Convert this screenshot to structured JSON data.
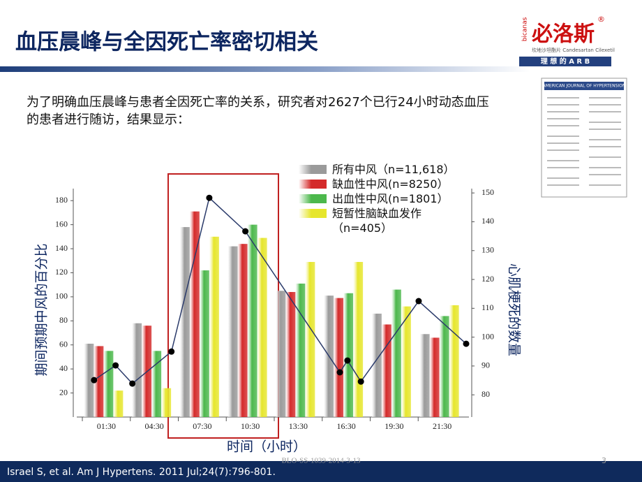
{
  "header": {
    "title": "血压晨峰与全因死亡率密切相关",
    "logo": {
      "brand": "必洛斯",
      "registered": "®",
      "vertical": "bicanas",
      "subtitle": "坎地沙坦酯片 Candesartan Cilexetil",
      "tagline": "理 想 的 A R B"
    }
  },
  "intro": "为了明确血压晨峰与患者全因死亡率的关系，研究者对2627个已行24小时动态血压的患者进行随访，结果显示：",
  "journal": {
    "title": "AMERICAN JOURNAL OF HYPERTENSION"
  },
  "chart_data": {
    "type": "bar",
    "categories": [
      "01:30",
      "04:30",
      "07:30",
      "10:30",
      "13:30",
      "16:30",
      "19:30",
      "21:30"
    ],
    "series": [
      {
        "name": "所有中风（n=11,618）",
        "color": "#9a9a9a",
        "values": [
          61,
          78,
          158,
          142,
          105,
          101,
          86,
          69
        ]
      },
      {
        "name": "缺血性中风(n=8250）",
        "color": "#d42a2a",
        "values": [
          59,
          76,
          171,
          144,
          104,
          99,
          77,
          66
        ]
      },
      {
        "name": "出血性中风(n=1801）",
        "color": "#4cb84c",
        "values": [
          55,
          55,
          122,
          160,
          111,
          103,
          106,
          84
        ]
      },
      {
        "name": "短暂性脑缺血发作（n=405）",
        "color": "#e6e62c",
        "values": [
          22,
          24,
          150,
          149,
          129,
          129,
          92,
          93
        ]
      }
    ],
    "line": {
      "type": "line",
      "axis": "y2",
      "color": "#2a3a6a",
      "x": [
        0.84,
        2.2,
        3.26,
        5.73,
        8.12,
        10.4,
        16.37,
        16.85,
        17.7,
        21.35,
        24.35
      ],
      "values": [
        85.1,
        90.2,
        83.9,
        95,
        148.3,
        136.7,
        87.8,
        91.9,
        84.6,
        112.5,
        97.7
      ]
    },
    "xlim": [
      0.1,
      24.35
    ],
    "ylim": [
      0,
      190
    ],
    "yticks": [
      20,
      40,
      60,
      80,
      100,
      120,
      140,
      160,
      180
    ],
    "y2lim": [
      72.3,
      151.5
    ],
    "y2ticks": [
      80,
      90,
      100,
      110,
      120,
      130,
      140,
      150
    ],
    "ylabel": "期间预期中风的百分比",
    "y2label": "心肌梗死的数量",
    "xlabel": "时间（小时）"
  },
  "footer": {
    "citation": "Israel S, et al. Am J Hypertens. 2011 Jul;24(7):796-801.",
    "code": "BLO-SS-1039-2014-3-13",
    "page": "3"
  }
}
